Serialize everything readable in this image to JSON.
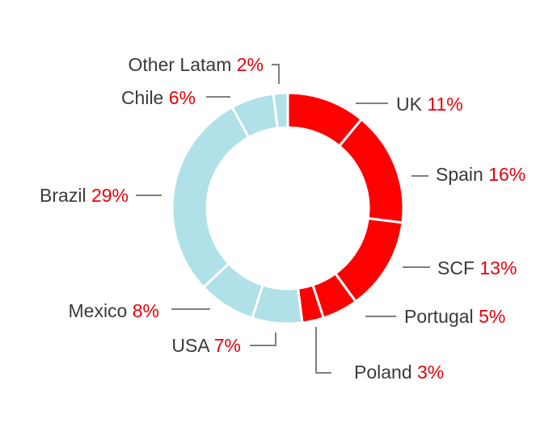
{
  "chart_data": {
    "type": "pie",
    "donut": true,
    "title": "",
    "slices": [
      {
        "label": "UK",
        "pct_text": "11%",
        "value": 11,
        "color": "#ff0000"
      },
      {
        "label": "Spain",
        "pct_text": "16%",
        "value": 16,
        "color": "#ff0000"
      },
      {
        "label": "SCF",
        "pct_text": "13%",
        "value": 13,
        "color": "#ff0000"
      },
      {
        "label": "Portugal",
        "pct_text": "5%",
        "value": 5,
        "color": "#ff0000"
      },
      {
        "label": "Poland",
        "pct_text": "3%",
        "value": 3,
        "color": "#ff0000"
      },
      {
        "label": "USA",
        "pct_text": "7%",
        "value": 7,
        "color": "#b0e0e8"
      },
      {
        "label": "Mexico",
        "pct_text": "8%",
        "value": 8,
        "color": "#b0e0e8"
      },
      {
        "label": "Brazil",
        "pct_text": "29%",
        "value": 29,
        "color": "#b0e0e8"
      },
      {
        "label": "Chile",
        "pct_text": "6%",
        "value": 6,
        "color": "#b0e0e8"
      },
      {
        "label": "Other Latam",
        "pct_text": "2%",
        "value": 2,
        "color": "#b0e0e8"
      }
    ],
    "colors": {
      "europe": "#ff0000",
      "americas": "#b0e0e8",
      "label_text": "#3a3a3a",
      "pct_text": "#e8000b",
      "leader": "#7f7f7f"
    }
  }
}
